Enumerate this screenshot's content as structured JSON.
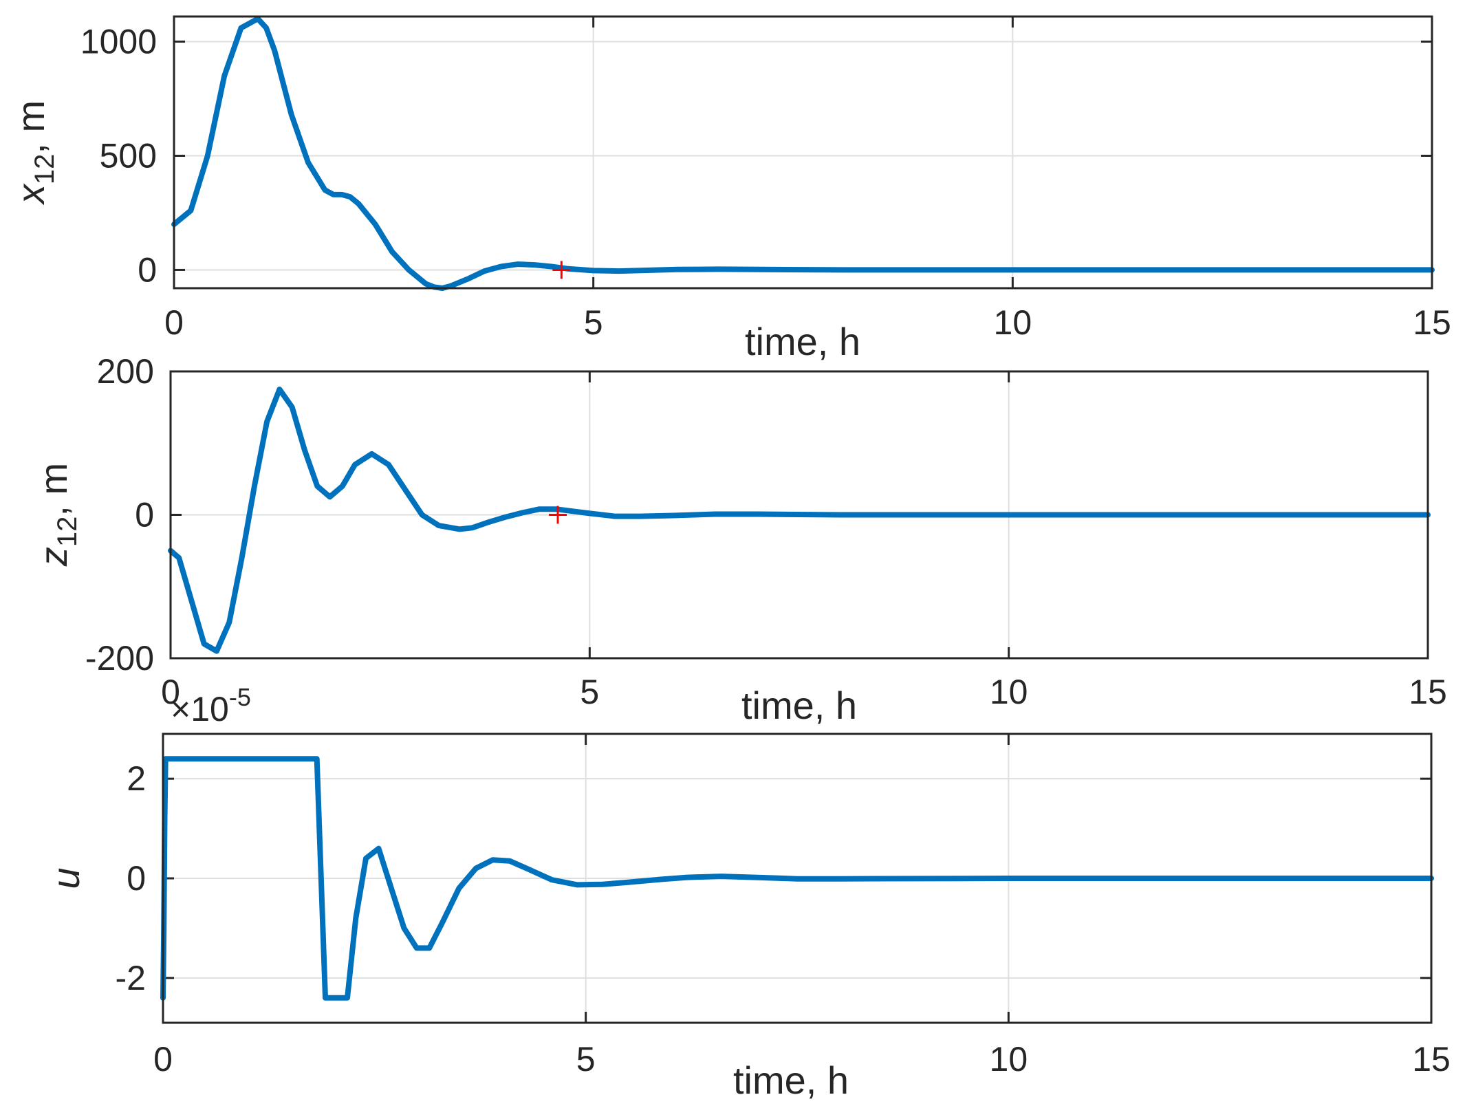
{
  "chart_data": [
    {
      "type": "line",
      "ylabel": {
        "var": "x",
        "sub": "12",
        "rest": ",  m"
      },
      "xlabel": "time, h",
      "xlim": [
        0,
        15
      ],
      "ylim": [
        -80,
        1110
      ],
      "xticks": [
        0,
        5,
        10,
        15
      ],
      "xtick_labels": [
        "0",
        "5",
        "10",
        "15"
      ],
      "yticks": [
        0,
        500,
        1000
      ],
      "ytick_labels": [
        "0",
        "500",
        "1000"
      ],
      "grid": true,
      "series": [
        {
          "x": [
            0,
            0.2,
            0.4,
            0.6,
            0.8,
            1.0,
            1.1,
            1.2,
            1.3,
            1.4,
            1.6,
            1.8,
            1.9,
            2.0,
            2.1,
            2.2,
            2.4,
            2.6,
            2.8,
            3.0,
            3.1,
            3.2,
            3.3,
            3.5,
            3.7,
            3.9,
            4.1,
            4.3,
            4.5,
            4.7,
            5.0,
            5.3,
            5.6,
            6.0,
            6.5,
            7.0,
            8.0,
            10.0,
            12.0,
            15.0
          ],
          "y": [
            200,
            260,
            500,
            850,
            1060,
            1100,
            1060,
            960,
            820,
            680,
            470,
            350,
            330,
            330,
            320,
            290,
            200,
            80,
            0,
            -60,
            -75,
            -80,
            -70,
            -40,
            -5,
            15,
            25,
            22,
            15,
            5,
            -3,
            -5,
            -2,
            2,
            3,
            2,
            0,
            0,
            0,
            0
          ]
        }
      ],
      "marker": {
        "x": 4.62,
        "y": 0,
        "symbol": "+",
        "color": "#ff0000"
      }
    },
    {
      "type": "line",
      "ylabel": {
        "var": "z",
        "sub": "12",
        "rest": ",  m"
      },
      "xlabel": "time, h",
      "xlim": [
        0,
        15
      ],
      "ylim": [
        -200,
        200
      ],
      "xticks": [
        0,
        5,
        10,
        15
      ],
      "xtick_labels": [
        "0",
        "5",
        "10",
        "15"
      ],
      "yticks": [
        -200,
        0,
        200
      ],
      "ytick_labels": [
        "-200",
        "0",
        "200"
      ],
      "grid": true,
      "series": [
        {
          "x": [
            0,
            0.1,
            0.25,
            0.4,
            0.55,
            0.7,
            0.85,
            1.0,
            1.15,
            1.3,
            1.45,
            1.6,
            1.75,
            1.9,
            2.05,
            2.2,
            2.4,
            2.6,
            2.8,
            3.0,
            3.2,
            3.45,
            3.6,
            3.8,
            4.0,
            4.2,
            4.4,
            4.6,
            4.8,
            5.0,
            5.3,
            5.6,
            6.0,
            6.5,
            7.0,
            8.0,
            10.0,
            12.0,
            15.0
          ],
          "y": [
            -50,
            -60,
            -120,
            -180,
            -190,
            -150,
            -60,
            40,
            130,
            175,
            150,
            90,
            40,
            25,
            40,
            70,
            85,
            70,
            35,
            0,
            -15,
            -20,
            -18,
            -10,
            -3,
            3,
            8,
            8,
            5,
            2,
            -2,
            -2,
            -1,
            1,
            1,
            0,
            0,
            0,
            0
          ]
        }
      ],
      "marker": {
        "x": 4.62,
        "y": 0,
        "symbol": "+",
        "color": "#ff0000"
      }
    },
    {
      "type": "line",
      "ylabel": {
        "var": "u",
        "sub": "",
        "rest": ""
      },
      "xlabel": "time, h",
      "xlim": [
        0,
        15
      ],
      "ylim": [
        -2.9,
        2.9
      ],
      "xticks": [
        0,
        5,
        10,
        15
      ],
      "xtick_labels": [
        "0",
        "5",
        "10",
        "15"
      ],
      "yticks": [
        -2,
        0,
        2
      ],
      "ytick_labels": [
        "-2",
        "0",
        "2"
      ],
      "exponent": {
        "base": "×10",
        "power": "-5"
      },
      "grid": true,
      "series": [
        {
          "x": [
            0,
            0.01,
            0.02,
            0.03,
            1.82,
            1.92,
            2.18,
            2.28,
            2.4,
            2.55,
            2.7,
            2.85,
            3.0,
            3.15,
            3.3,
            3.5,
            3.7,
            3.9,
            4.1,
            4.3,
            4.6,
            4.9,
            5.2,
            5.5,
            5.9,
            6.2,
            6.6,
            7.0,
            7.5,
            8.0,
            10.0,
            12.0,
            15.0
          ],
          "y": [
            -2.4,
            -1.0,
            1.2,
            2.4,
            2.4,
            -2.4,
            -2.4,
            -0.8,
            0.4,
            0.6,
            -0.2,
            -1.0,
            -1.4,
            -1.4,
            -0.9,
            -0.2,
            0.2,
            0.37,
            0.35,
            0.2,
            -0.03,
            -0.13,
            -0.12,
            -0.08,
            -0.02,
            0.02,
            0.04,
            0.02,
            -0.01,
            -0.01,
            0,
            0,
            0
          ]
        }
      ]
    }
  ]
}
